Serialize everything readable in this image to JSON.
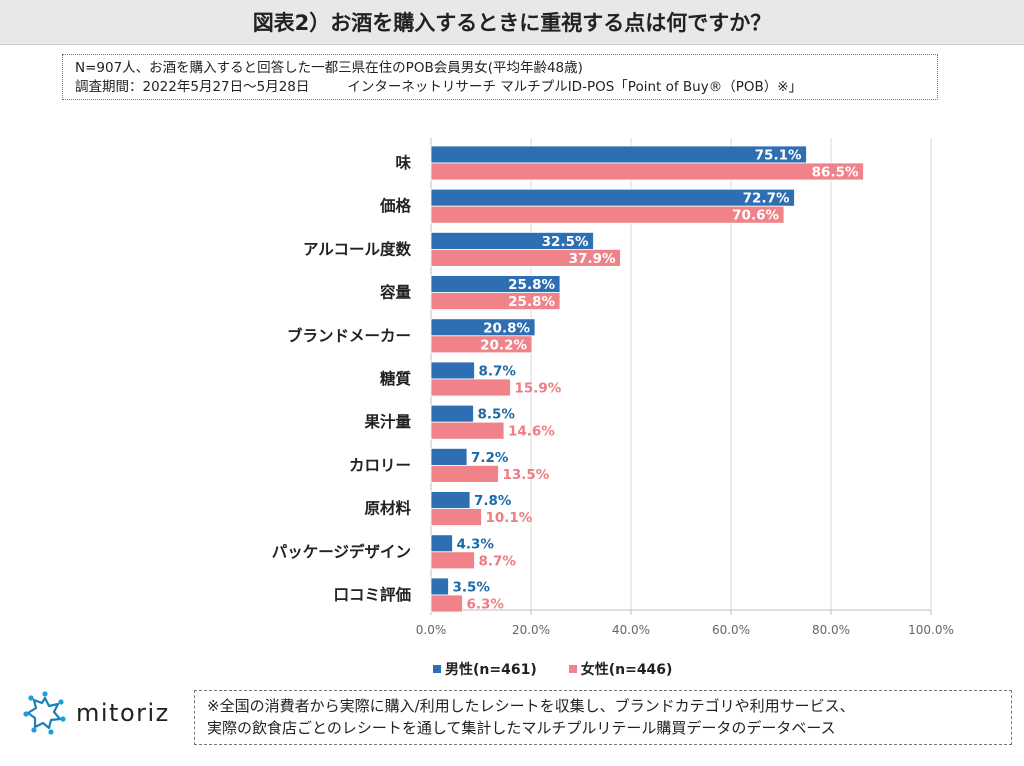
{
  "header": {
    "title": "図表2）お酒を購入するときに重視する点は何ですか？"
  },
  "info": {
    "line1": "N=907人、お酒を購入すると回答した一都三県在住のPOB会員男女(平均年齢48歳)",
    "line2a": "調査期間：2022年5月27日～5月28日",
    "line2b": "インターネットリサーチ マルチプルID-POS「Point of Buy®（POB）※」"
  },
  "colors": {
    "male": "#2e6fb4",
    "female": "#f0838a",
    "male_label": "#1f6aa6",
    "female_label": "#ee7c83",
    "grid": "#d9d9d9"
  },
  "chart_data": {
    "type": "bar",
    "orientation": "horizontal",
    "categories": [
      "味",
      "価格",
      "アルコール度数",
      "容量",
      "ブランドメーカー",
      "糖質",
      "果汁量",
      "カロリー",
      "原材料",
      "パッケージデザイン",
      "口コミ評価"
    ],
    "series": [
      {
        "name": "男性(n=461)",
        "values": [
          75.1,
          72.7,
          32.5,
          25.8,
          20.8,
          8.7,
          8.5,
          7.2,
          7.8,
          4.3,
          3.5
        ]
      },
      {
        "name": "女性(n=446)",
        "values": [
          86.5,
          70.6,
          37.9,
          25.8,
          20.2,
          15.9,
          14.6,
          13.5,
          10.1,
          8.7,
          6.3
        ]
      }
    ],
    "xlim": [
      0,
      100
    ],
    "xticks": [
      "0.0%",
      "20.0%",
      "40.0%",
      "60.0%",
      "80.0%",
      "100.0%"
    ],
    "value_suffix": "%",
    "legend": "bottom"
  },
  "logo": {
    "text": "mitoriz",
    "icon": "mitoriz-star-icon"
  },
  "note": {
    "line1": "※全国の消費者から実際に購入/利用したレシートを収集し、ブランドカテゴリや利用サービス、",
    "line2": "実際の飲食店ごとのレシートを通して集計したマルチプルリテール購買データのデータベース"
  }
}
